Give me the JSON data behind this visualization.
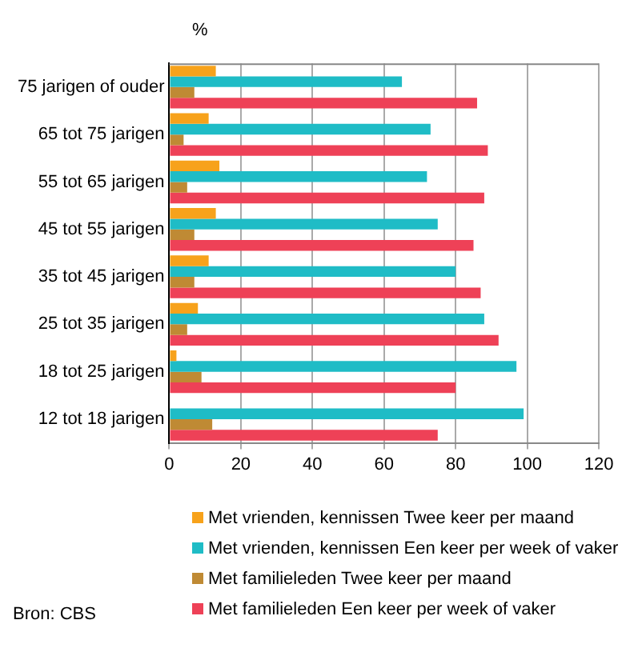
{
  "chart_data": {
    "type": "bar",
    "orientation": "horizontal",
    "xlabel": "%",
    "categories": [
      "75 jarigen of ouder",
      "65 tot 75 jarigen",
      "55 tot 65 jarigen",
      "45 tot 55 jarigen",
      "35 tot 45 jarigen",
      "25 tot 35 jarigen",
      "18 tot 25 jarigen",
      "12 tot 18 jarigen"
    ],
    "series": [
      {
        "name": "Met vrienden, kennissen Twee keer per maand",
        "color": "#f7a21b",
        "values": [
          13,
          11,
          14,
          13,
          11,
          8,
          2,
          null
        ]
      },
      {
        "name": "Met vrienden, kennissen Een keer per week of vaker",
        "color": "#1fbcc6",
        "values": [
          65,
          73,
          72,
          75,
          80,
          88,
          97,
          99
        ]
      },
      {
        "name": "Met familieleden Twee keer per maand",
        "color": "#bf8a34",
        "values": [
          7,
          4,
          5,
          7,
          7,
          5,
          9,
          12
        ]
      },
      {
        "name": "Met familieleden Een keer per week of vaker",
        "color": "#ee4157",
        "values": [
          86,
          89,
          88,
          85,
          87,
          92,
          80,
          75
        ]
      }
    ],
    "xlim": [
      0,
      120
    ],
    "xticks": [
      0,
      20,
      40,
      60,
      80,
      100,
      120
    ],
    "grid": "x",
    "legend": "bottom",
    "annotations": [
      "Bron: CBS"
    ]
  }
}
